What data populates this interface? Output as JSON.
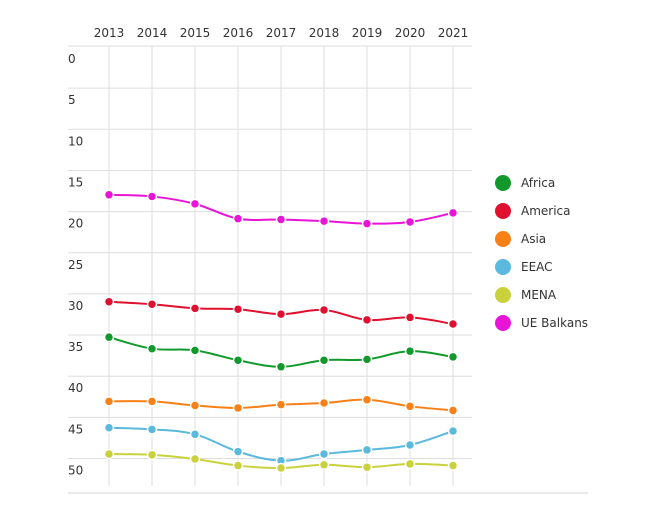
{
  "chart_data": {
    "type": "line",
    "title": "",
    "xlabel": "",
    "ylabel": "",
    "x": [
      "2013",
      "2014",
      "2015",
      "2016",
      "2017",
      "2018",
      "2019",
      "2020",
      "2021"
    ],
    "y_ticks": [
      "0",
      "5",
      "10",
      "15",
      "20",
      "25",
      "30",
      "35",
      "40",
      "45",
      "50"
    ],
    "ylim": [
      0,
      50
    ],
    "y_inverted": true,
    "x_axis_position": "top",
    "legend_position": "right",
    "grid": true,
    "series": [
      {
        "name": "Africa",
        "color": "#119a2b",
        "values": [
          33.8,
          35.2,
          35.4,
          36.6,
          37.4,
          36.6,
          36.5,
          35.5,
          36.2
        ]
      },
      {
        "name": "America",
        "color": "#e0102f",
        "values": [
          29.5,
          29.8,
          30.3,
          30.4,
          31.0,
          30.5,
          31.7,
          31.4,
          32.2
        ]
      },
      {
        "name": "Asia",
        "color": "#f98017",
        "values": [
          41.6,
          41.6,
          42.1,
          42.4,
          42.0,
          41.8,
          41.4,
          42.2,
          42.7
        ]
      },
      {
        "name": "EEAC",
        "color": "#5ab9dd",
        "values": [
          44.8,
          45.0,
          45.6,
          47.7,
          48.8,
          48.0,
          47.5,
          46.9,
          45.2
        ]
      },
      {
        "name": "MENA",
        "color": "#c9d23b",
        "values": [
          48.0,
          48.1,
          48.6,
          49.4,
          49.7,
          49.3,
          49.6,
          49.2,
          49.4
        ]
      },
      {
        "name": "UE Balkans",
        "color": "#ea13d8",
        "values": [
          16.5,
          16.7,
          17.6,
          19.4,
          19.5,
          19.7,
          20.0,
          19.8,
          18.7
        ]
      }
    ]
  }
}
